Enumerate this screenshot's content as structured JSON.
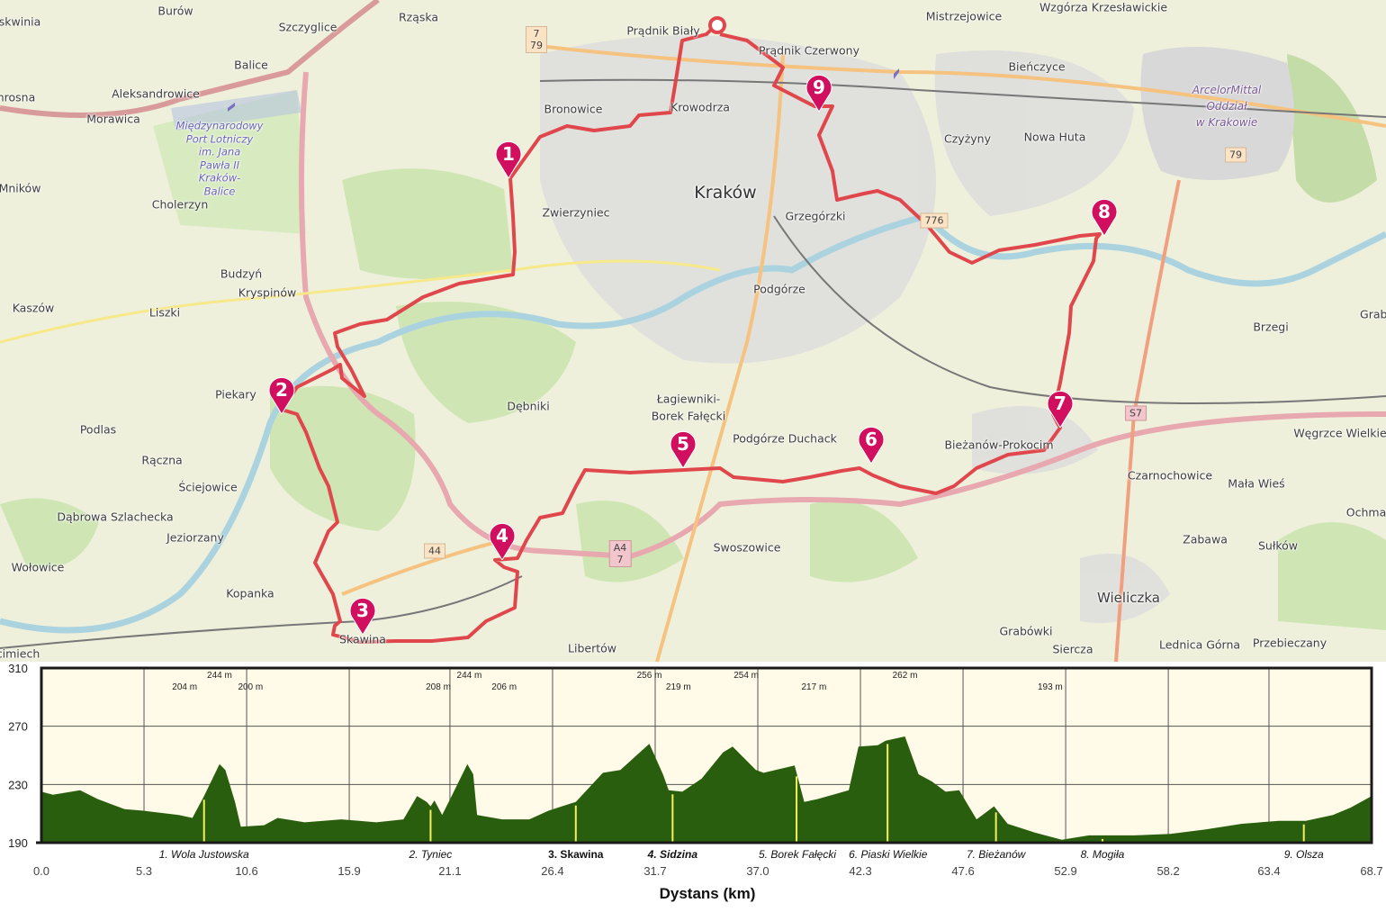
{
  "map": {
    "places": [
      "Burów",
      "Szczyglice",
      "Rząska",
      "Balice",
      "Aleksandrowice",
      "Morawica",
      "Mników",
      "Cholerzyn",
      "Budzyń",
      "Kryspinów",
      "Liszki",
      "Kaszów",
      "Piekary",
      "Podlas",
      "Rączna",
      "Ściejowice",
      "Dąbrowa Szlachecka",
      "Jeziorzany",
      "Wołowice",
      "Kopanka",
      "Skawina",
      "Prądnik Biały",
      "Prądnik Czerwony",
      "Bronowice",
      "Krowodrza",
      "Kraków",
      "Zwierzyniec",
      "Grzegórzki",
      "Podgórze",
      "Dębniki",
      "Łagiewniki-",
      "Borek Fałęcki",
      "Podgórze Duchack",
      "Swoszowice",
      "Libertów",
      "Mistrzejowice",
      "Wzgórza Krzesławickie",
      "Bieńczyce",
      "Czyżyny",
      "Nowa Huta",
      "Brzegi",
      "Grabi",
      "Bieżanów-Prokocim",
      "Węgrzce Wielkie",
      "Czarnochowice",
      "Mała Wieś",
      "Ochman",
      "Zabawa",
      "Sułków",
      "Wieliczka",
      "Grabówki",
      "Siercza",
      "Lednica Górna",
      "Przebieczany",
      "skwinia",
      "hrosna",
      "cimiech"
    ],
    "industrial_label": [
      "ArcelorMittal",
      "Oddział",
      "w Krakowie"
    ],
    "airport_label": [
      "Międzynarodowy",
      "Port Lotniczy",
      "im. Jana",
      "Pawła II",
      "Kraków-",
      "Balice"
    ],
    "road_shields": [
      "7",
      "79",
      "79",
      "776",
      "44",
      "A4",
      "7",
      "S7"
    ],
    "route_color": "#e0474c",
    "marker_color": "#d0105f",
    "markers": [
      "1",
      "2",
      "3",
      "4",
      "5",
      "6",
      "7",
      "8",
      "9"
    ]
  },
  "chart_data": {
    "type": "area",
    "xlabel": "Dystans (km)",
    "ylabel": "",
    "xlim": [
      0,
      68.7
    ],
    "ylim": [
      190,
      310
    ],
    "x_ticks": [
      "0.0",
      "5.3",
      "10.6",
      "15.9",
      "21.1",
      "26.4",
      "31.7",
      "37.0",
      "42.3",
      "47.6",
      "52.9",
      "58.2",
      "63.4",
      "68.7"
    ],
    "y_ticks": [
      "190",
      "230",
      "270",
      "310"
    ],
    "grid": true,
    "fill_color": "#2a5e0f",
    "background_color": "#fffbe8",
    "x": [
      0,
      0.6,
      2.0,
      2.9,
      4.3,
      5.2,
      7.1,
      7.8,
      8.4,
      9.2,
      9.5,
      10.0,
      10.3,
      11.5,
      12.2,
      13.6,
      15.5,
      17.3,
      18.7,
      19.4,
      19.9,
      20.1,
      20.3,
      20.7,
      21.3,
      22.0,
      22.3,
      22.5,
      23.8,
      25.2,
      26.2,
      27.6,
      29.0,
      29.9,
      31.4,
      32.1,
      32.4,
      33.1,
      34.1,
      35.2,
      35.7,
      36.9,
      37.3,
      38.9,
      39.4,
      40.1,
      41.7,
      42.2,
      43.2,
      43.6,
      44.6,
      45.3,
      46.0,
      46.7,
      47.4,
      48.3,
      49.2,
      49.9,
      51.3,
      52.7,
      54.1,
      55.0,
      56.4,
      58.3,
      60.1,
      62.0,
      63.9,
      65.3,
      66.7,
      67.6,
      68.7
    ],
    "y": [
      225,
      223,
      226,
      220,
      213,
      212,
      209,
      207,
      222,
      244,
      240,
      218,
      201,
      202,
      207,
      204,
      206,
      204,
      206,
      222,
      218,
      215,
      219,
      209,
      225,
      244,
      237,
      209,
      206,
      206,
      212,
      218,
      238,
      240,
      258,
      237,
      226,
      225,
      234,
      252,
      256,
      240,
      238,
      243,
      218,
      220,
      226,
      256,
      257,
      260,
      263,
      237,
      232,
      225,
      226,
      206,
      215,
      203,
      197,
      192,
      195,
      195,
      195,
      196,
      199,
      203,
      205,
      205,
      209,
      214,
      222
    ],
    "waypoints": [
      {
        "label": "1. Wola Justowska",
        "km": 8.4
      },
      {
        "label": "2. Tyniec",
        "km": 20.1
      },
      {
        "label": "3. Skawina",
        "km": 27.6
      },
      {
        "label": "4. Sidzina",
        "km": 32.6
      },
      {
        "label": "5. Borek Fałęcki",
        "km": 39.0
      },
      {
        "label": "6. Piaski Wielkie",
        "km": 43.7
      },
      {
        "label": "7. Bieżanów",
        "km": 49.3
      },
      {
        "label": "8. Mogiła",
        "km": 54.8
      },
      {
        "label": "9. Olsza",
        "km": 65.2
      }
    ],
    "annotations": [
      {
        "text": "204 m",
        "km": 7.4,
        "row": 2
      },
      {
        "text": "244 m",
        "km": 9.2,
        "row": 1
      },
      {
        "text": "200 m",
        "km": 10.8,
        "row": 2
      },
      {
        "text": "208 m",
        "km": 20.5,
        "row": 2
      },
      {
        "text": "244 m",
        "km": 22.1,
        "row": 1
      },
      {
        "text": "206 m",
        "km": 23.9,
        "row": 2
      },
      {
        "text": "256 m",
        "km": 31.4,
        "row": 1
      },
      {
        "text": "219 m",
        "km": 32.9,
        "row": 2
      },
      {
        "text": "254 m",
        "km": 36.4,
        "row": 1
      },
      {
        "text": "217 m",
        "km": 39.9,
        "row": 2
      },
      {
        "text": "262 m",
        "km": 44.6,
        "row": 1
      },
      {
        "text": "193 m",
        "km": 52.1,
        "row": 2
      }
    ]
  }
}
